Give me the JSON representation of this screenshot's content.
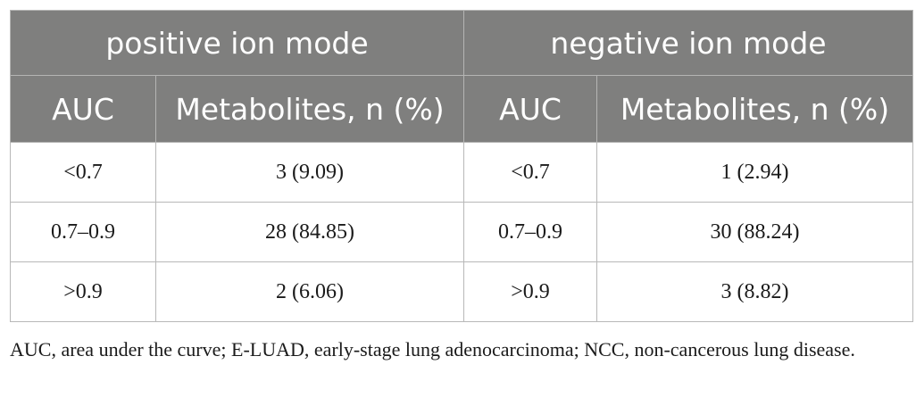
{
  "table": {
    "group_headers": [
      "positive ion mode",
      "negative ion mode"
    ],
    "column_headers": [
      "AUC",
      "Metabolites, n (%)",
      "AUC",
      "Metabolites, n (%)"
    ],
    "rows": [
      [
        "<0.7",
        "3 (9.09)",
        "<0.7",
        "1 (2.94)"
      ],
      [
        "0.7–0.9",
        "28 (84.85)",
        "0.7–0.9",
        "30 (88.24)"
      ],
      [
        ">0.9",
        "2 (6.06)",
        ">0.9",
        "3 (8.82)"
      ]
    ],
    "colors": {
      "header_bg": "#7f7f7e",
      "header_text": "#ffffff",
      "border": "#b8b8b8"
    }
  },
  "footnote": "AUC, area under the curve; E-LUAD, early-stage lung adenocarcinoma; NCC, non-cancerous lung disease."
}
